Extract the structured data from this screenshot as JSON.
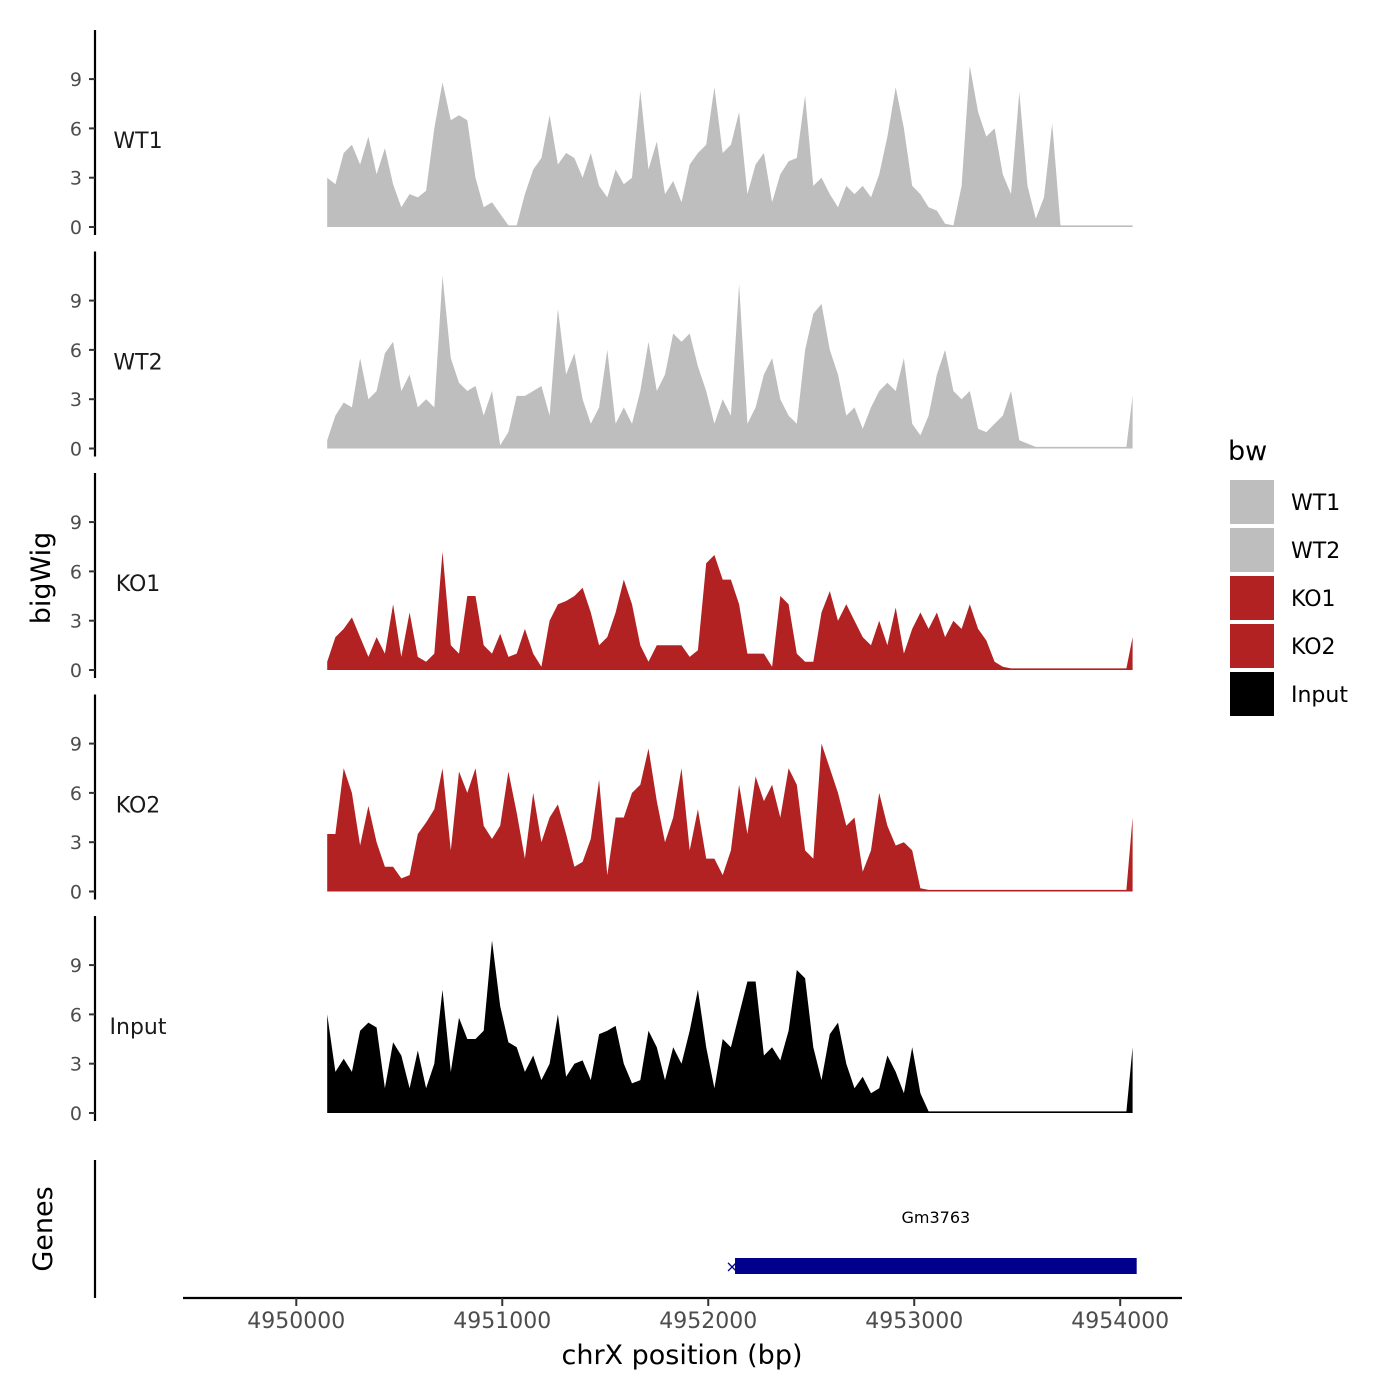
{
  "chart_data": {
    "type": "area",
    "title": "",
    "xlabel": "chrX position (bp)",
    "ylabel": "bigWig",
    "genes_label": "Genes",
    "x_range": [
      4949450,
      4954300
    ],
    "x_ticks": [
      4950000,
      4951000,
      4952000,
      4953000,
      4954000
    ],
    "x_tick_labels": [
      "4950000",
      "4951000",
      "4952000",
      "4953000",
      "4954000"
    ],
    "y_range": [
      0,
      11.5
    ],
    "y_ticks": [
      0,
      3,
      6,
      9
    ],
    "y_tick_labels": [
      "0",
      "3",
      "6",
      "9"
    ],
    "legend": {
      "title": "bw",
      "position": "right",
      "entries": [
        {
          "label": "WT1",
          "color": "#bebebe"
        },
        {
          "label": "WT2",
          "color": "#bebebe"
        },
        {
          "label": "KO1",
          "color": "#b22222"
        },
        {
          "label": "KO2",
          "color": "#b22222"
        },
        {
          "label": "Input",
          "color": "#000000"
        }
      ]
    },
    "series": [
      {
        "name": "WT1",
        "color": "#bebebe",
        "x": [
          4950150,
          4950190,
          4950230,
          4950270,
          4950310,
          4950350,
          4950390,
          4950430,
          4950470,
          4950510,
          4950550,
          4950590,
          4950630,
          4950670,
          4950710,
          4950750,
          4950790,
          4950830,
          4950870,
          4950910,
          4950950,
          4950990,
          4951030,
          4951070,
          4951110,
          4951150,
          4951190,
          4951230,
          4951270,
          4951310,
          4951350,
          4951390,
          4951430,
          4951470,
          4951510,
          4951550,
          4951590,
          4951630,
          4951670,
          4951710,
          4951750,
          4951790,
          4951830,
          4951870,
          4951910,
          4951950,
          4951990,
          4952030,
          4952070,
          4952110,
          4952150,
          4952190,
          4952230,
          4952270,
          4952310,
          4952350,
          4952390,
          4952430,
          4952470,
          4952510,
          4952550,
          4952590,
          4952630,
          4952670,
          4952710,
          4952750,
          4952790,
          4952830,
          4952870,
          4952910,
          4952950,
          4952990,
          4953030,
          4953070,
          4953110,
          4953150,
          4953190,
          4953230,
          4953270,
          4953310,
          4953350,
          4953390,
          4953430,
          4953470,
          4953510,
          4953550,
          4953590,
          4953630,
          4953670,
          4953710,
          4953750,
          4953790,
          4953830,
          4953870,
          4953910,
          4953950,
          4953990,
          4954030,
          4954060
        ],
        "values": [
          3.0,
          2.6,
          4.5,
          5.0,
          3.8,
          5.5,
          3.2,
          4.8,
          2.6,
          1.2,
          2.0,
          1.8,
          2.2,
          6.0,
          8.8,
          6.5,
          6.8,
          6.5,
          3.0,
          1.2,
          1.5,
          0.8,
          0.1,
          0.1,
          2.0,
          3.5,
          4.2,
          6.8,
          3.8,
          4.5,
          4.2,
          3.0,
          4.5,
          2.5,
          1.8,
          3.5,
          2.6,
          3.0,
          8.3,
          3.5,
          5.2,
          2.0,
          2.8,
          1.5,
          3.8,
          4.5,
          5.0,
          8.5,
          4.5,
          5.0,
          7.0,
          2.0,
          3.8,
          4.5,
          1.5,
          3.2,
          4.0,
          4.2,
          8.0,
          2.5,
          3.0,
          2.0,
          1.2,
          2.5,
          2.0,
          2.5,
          1.8,
          3.2,
          5.5,
          8.5,
          6.0,
          2.5,
          2.0,
          1.2,
          1.0,
          0.2,
          0.1,
          2.5,
          9.8,
          7.0,
          5.5,
          6.0,
          3.2,
          2.0,
          8.2,
          2.5,
          0.5,
          1.8,
          6.3,
          0.1,
          0.1,
          0.1,
          0.1,
          0.1,
          0.1,
          0.1,
          0.1,
          0.1,
          0.1
        ]
      },
      {
        "name": "WT2",
        "color": "#bebebe",
        "x": [
          4950150,
          4950190,
          4950230,
          4950270,
          4950310,
          4950350,
          4950390,
          4950430,
          4950470,
          4950510,
          4950550,
          4950590,
          4950630,
          4950670,
          4950710,
          4950750,
          4950790,
          4950830,
          4950870,
          4950910,
          4950950,
          4950990,
          4951030,
          4951070,
          4951110,
          4951150,
          4951190,
          4951230,
          4951270,
          4951310,
          4951350,
          4951390,
          4951430,
          4951470,
          4951510,
          4951550,
          4951590,
          4951630,
          4951670,
          4951710,
          4951750,
          4951790,
          4951830,
          4951870,
          4951910,
          4951950,
          4951990,
          4952030,
          4952070,
          4952110,
          4952150,
          4952190,
          4952230,
          4952270,
          4952310,
          4952350,
          4952390,
          4952430,
          4952470,
          4952510,
          4952550,
          4952590,
          4952630,
          4952670,
          4952710,
          4952750,
          4952790,
          4952830,
          4952870,
          4952910,
          4952950,
          4952990,
          4953030,
          4953070,
          4953110,
          4953150,
          4953190,
          4953230,
          4953270,
          4953310,
          4953350,
          4953390,
          4953430,
          4953470,
          4953510,
          4953550,
          4953590,
          4953630,
          4953670,
          4953710,
          4953750,
          4953790,
          4953830,
          4953870,
          4953910,
          4953950,
          4953990,
          4954030,
          4954060
        ],
        "values": [
          0.5,
          2.0,
          2.8,
          2.5,
          5.5,
          3.0,
          3.5,
          5.8,
          6.5,
          3.5,
          4.5,
          2.5,
          3.0,
          2.5,
          10.5,
          5.5,
          4.0,
          3.5,
          3.8,
          2.0,
          3.5,
          0.2,
          1.0,
          3.2,
          3.2,
          3.5,
          3.8,
          2.0,
          8.5,
          4.5,
          5.8,
          3.0,
          1.5,
          2.5,
          6.0,
          1.5,
          2.5,
          1.5,
          3.5,
          6.5,
          3.5,
          4.5,
          7.0,
          6.5,
          7.0,
          5.0,
          3.5,
          1.5,
          3.0,
          2.0,
          10.0,
          1.5,
          2.5,
          4.5,
          5.5,
          3.0,
          2.0,
          1.5,
          6.0,
          8.2,
          8.8,
          6.0,
          4.5,
          2.0,
          2.5,
          1.2,
          2.5,
          3.5,
          4.0,
          3.5,
          5.5,
          1.5,
          0.8,
          2.0,
          4.5,
          6.0,
          3.5,
          3.0,
          3.5,
          1.2,
          1.0,
          1.5,
          2.0,
          3.5,
          0.5,
          0.3,
          0.1,
          0.1,
          0.1,
          0.1,
          0.1,
          0.1,
          0.1,
          0.1,
          0.1,
          0.1,
          0.1,
          0.1,
          3.2
        ]
      },
      {
        "name": "KO1",
        "color": "#b22222",
        "x": [
          4950150,
          4950190,
          4950230,
          4950270,
          4950310,
          4950350,
          4950390,
          4950430,
          4950470,
          4950510,
          4950550,
          4950590,
          4950630,
          4950670,
          4950710,
          4950750,
          4950790,
          4950830,
          4950870,
          4950910,
          4950950,
          4950990,
          4951030,
          4951070,
          4951110,
          4951150,
          4951190,
          4951230,
          4951270,
          4951310,
          4951350,
          4951390,
          4951430,
          4951470,
          4951510,
          4951550,
          4951590,
          4951630,
          4951670,
          4951710,
          4951750,
          4951790,
          4951830,
          4951870,
          4951910,
          4951950,
          4951990,
          4952030,
          4952070,
          4952110,
          4952150,
          4952190,
          4952230,
          4952270,
          4952310,
          4952350,
          4952390,
          4952430,
          4952470,
          4952510,
          4952550,
          4952590,
          4952630,
          4952670,
          4952710,
          4952750,
          4952790,
          4952830,
          4952870,
          4952910,
          4952950,
          4952990,
          4953030,
          4953070,
          4953110,
          4953150,
          4953190,
          4953230,
          4953270,
          4953310,
          4953350,
          4953390,
          4953430,
          4953470,
          4953510,
          4953550,
          4953590,
          4953630,
          4953670,
          4953710,
          4953750,
          4953790,
          4953830,
          4953870,
          4953910,
          4953950,
          4953990,
          4954030,
          4954060
        ],
        "values": [
          0.5,
          2.0,
          2.5,
          3.2,
          2.0,
          0.8,
          2.0,
          1.0,
          4.0,
          0.8,
          3.5,
          0.8,
          0.5,
          1.0,
          7.2,
          1.5,
          1.0,
          4.5,
          4.5,
          1.5,
          1.0,
          2.2,
          0.8,
          1.0,
          2.5,
          1.0,
          0.2,
          3.0,
          4.0,
          4.2,
          4.5,
          5.0,
          3.5,
          1.5,
          2.0,
          3.5,
          5.5,
          4.0,
          1.5,
          0.5,
          1.5,
          1.5,
          1.5,
          1.5,
          0.8,
          1.2,
          6.5,
          7.0,
          5.5,
          5.5,
          4.0,
          1.0,
          1.0,
          1.0,
          0.2,
          4.5,
          4.0,
          1.0,
          0.5,
          0.5,
          3.5,
          4.8,
          3.0,
          4.0,
          3.0,
          2.0,
          1.5,
          3.0,
          1.5,
          3.8,
          1.0,
          2.5,
          3.5,
          2.5,
          3.5,
          2.0,
          3.0,
          2.5,
          4.0,
          2.5,
          1.8,
          0.5,
          0.2,
          0.1,
          0.1,
          0.1,
          0.1,
          0.1,
          0.1,
          0.1,
          0.1,
          0.1,
          0.1,
          0.1,
          0.1,
          0.1,
          0.1,
          0.1,
          2.0
        ]
      },
      {
        "name": "KO2",
        "color": "#b22222",
        "x": [
          4950150,
          4950190,
          4950230,
          4950270,
          4950310,
          4950350,
          4950390,
          4950430,
          4950470,
          4950510,
          4950550,
          4950590,
          4950630,
          4950670,
          4950710,
          4950750,
          4950790,
          4950830,
          4950870,
          4950910,
          4950950,
          4950990,
          4951030,
          4951070,
          4951110,
          4951150,
          4951190,
          4951230,
          4951270,
          4951310,
          4951350,
          4951390,
          4951430,
          4951470,
          4951510,
          4951550,
          4951590,
          4951630,
          4951670,
          4951710,
          4951750,
          4951790,
          4951830,
          4951870,
          4951910,
          4951950,
          4951990,
          4952030,
          4952070,
          4952110,
          4952150,
          4952190,
          4952230,
          4952270,
          4952310,
          4952350,
          4952390,
          4952430,
          4952470,
          4952510,
          4952550,
          4952590,
          4952630,
          4952670,
          4952710,
          4952750,
          4952790,
          4952830,
          4952870,
          4952910,
          4952950,
          4952990,
          4953030,
          4953070,
          4953110,
          4953150,
          4953190,
          4953230,
          4953270,
          4953310,
          4953350,
          4953390,
          4953430,
          4953470,
          4953510,
          4953550,
          4953590,
          4953630,
          4953670,
          4953710,
          4953750,
          4953790,
          4953830,
          4953870,
          4953910,
          4953950,
          4953990,
          4954030,
          4954060
        ],
        "values": [
          3.5,
          3.5,
          7.5,
          6.0,
          2.8,
          5.2,
          3.0,
          1.5,
          1.5,
          0.8,
          1.0,
          3.5,
          4.2,
          5.0,
          7.5,
          2.5,
          7.3,
          6.0,
          7.5,
          4.0,
          3.2,
          4.0,
          7.3,
          4.8,
          2.0,
          6.0,
          3.0,
          4.5,
          5.3,
          3.5,
          1.5,
          1.8,
          3.2,
          6.8,
          1.0,
          4.5,
          4.5,
          6.0,
          6.5,
          8.7,
          5.5,
          3.0,
          4.5,
          7.5,
          2.5,
          5.0,
          2.0,
          2.0,
          1.0,
          2.5,
          6.5,
          3.5,
          7.0,
          5.5,
          6.5,
          4.5,
          7.5,
          6.5,
          2.5,
          2.0,
          9.0,
          7.5,
          6.0,
          4.0,
          4.5,
          1.2,
          2.5,
          6.0,
          4.0,
          2.8,
          3.0,
          2.5,
          0.2,
          0.1,
          0.1,
          0.1,
          0.1,
          0.1,
          0.1,
          0.1,
          0.1,
          0.1,
          0.1,
          0.1,
          0.1,
          0.1,
          0.1,
          0.1,
          0.1,
          0.1,
          0.1,
          0.1,
          0.1,
          0.1,
          0.1,
          0.1,
          0.1,
          0.1,
          4.5
        ]
      },
      {
        "name": "Input",
        "color": "#000000",
        "x": [
          4950150,
          4950190,
          4950230,
          4950270,
          4950310,
          4950350,
          4950390,
          4950430,
          4950470,
          4950510,
          4950550,
          4950590,
          4950630,
          4950670,
          4950710,
          4950750,
          4950790,
          4950830,
          4950870,
          4950910,
          4950950,
          4950990,
          4951030,
          4951070,
          4951110,
          4951150,
          4951190,
          4951230,
          4951270,
          4951310,
          4951350,
          4951390,
          4951430,
          4951470,
          4951510,
          4951550,
          4951590,
          4951630,
          4951670,
          4951710,
          4951750,
          4951790,
          4951830,
          4951870,
          4951910,
          4951950,
          4951990,
          4952030,
          4952070,
          4952110,
          4952150,
          4952190,
          4952230,
          4952270,
          4952310,
          4952350,
          4952390,
          4952430,
          4952470,
          4952510,
          4952550,
          4952590,
          4952630,
          4952670,
          4952710,
          4952750,
          4952790,
          4952830,
          4952870,
          4952910,
          4952950,
          4952990,
          4953030,
          4953070,
          4953110,
          4953150,
          4953190,
          4953230,
          4953270,
          4953310,
          4953350,
          4953390,
          4953430,
          4953470,
          4953510,
          4953550,
          4953590,
          4953630,
          4953670,
          4953710,
          4953750,
          4953790,
          4953830,
          4953870,
          4953910,
          4953950,
          4953990,
          4954030,
          4954060
        ],
        "values": [
          6.0,
          2.5,
          3.3,
          2.5,
          5.0,
          5.5,
          5.2,
          1.5,
          4.3,
          3.5,
          1.5,
          3.8,
          1.5,
          3.0,
          7.5,
          2.5,
          5.8,
          4.5,
          4.5,
          5.0,
          10.5,
          6.5,
          4.3,
          4.0,
          2.5,
          3.5,
          2.0,
          3.0,
          6.0,
          2.2,
          3.0,
          3.2,
          2.0,
          4.8,
          5.0,
          5.3,
          3.0,
          1.8,
          2.0,
          5.0,
          4.0,
          2.0,
          4.0,
          3.0,
          5.0,
          7.5,
          4.0,
          1.5,
          4.5,
          4.0,
          6.0,
          8.0,
          8.0,
          3.5,
          4.0,
          3.2,
          5.0,
          8.7,
          8.2,
          4.0,
          2.0,
          4.8,
          5.5,
          3.0,
          1.5,
          2.2,
          1.2,
          1.5,
          3.5,
          2.5,
          1.2,
          4.0,
          1.2,
          0.1,
          0.1,
          0.1,
          0.1,
          0.1,
          0.1,
          0.1,
          0.1,
          0.1,
          0.1,
          0.1,
          0.1,
          0.1,
          0.1,
          0.1,
          0.1,
          0.1,
          0.1,
          0.1,
          0.1,
          0.1,
          0.1,
          0.1,
          0.1,
          0.1,
          4.0
        ]
      }
    ],
    "genes": [
      {
        "name": "Gm3763",
        "start": 4952130,
        "end": 4954080,
        "color": "#00008b",
        "strand_marker": "×"
      }
    ]
  }
}
